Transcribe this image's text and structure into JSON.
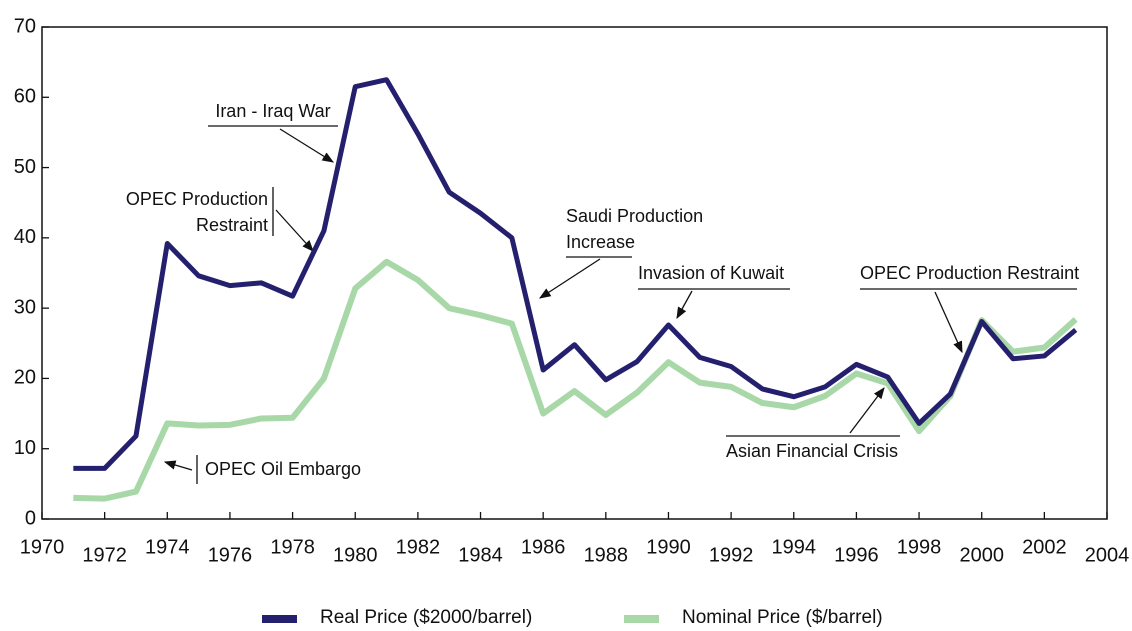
{
  "chart_data": {
    "type": "line",
    "x": [
      1971,
      1972,
      1973,
      1974,
      1975,
      1976,
      1977,
      1978,
      1979,
      1980,
      1981,
      1982,
      1983,
      1984,
      1985,
      1986,
      1987,
      1988,
      1989,
      1990,
      1991,
      1992,
      1993,
      1994,
      1995,
      1996,
      1997,
      1998,
      1999,
      2000,
      2001,
      2002,
      2003
    ],
    "series": [
      {
        "name": "Real Price ($2000/barrel)",
        "color": "#25206e",
        "values": [
          7.2,
          7.2,
          11.8,
          39.2,
          34.6,
          33.2,
          33.6,
          31.7,
          41.0,
          61.5,
          62.5,
          54.8,
          46.5,
          43.5,
          40.0,
          21.2,
          24.8,
          19.8,
          22.4,
          27.6,
          23.0,
          21.7,
          18.5,
          17.4,
          18.8,
          22.0,
          20.2,
          13.6,
          17.8,
          28.1,
          22.8,
          23.2,
          26.9
        ]
      },
      {
        "name": "Nominal Price ($/barrel)",
        "color": "#a8d8a8",
        "values": [
          3.0,
          2.9,
          3.9,
          13.6,
          13.3,
          13.4,
          14.3,
          14.4,
          20.0,
          32.8,
          36.6,
          34.0,
          30.0,
          29.0,
          27.8,
          15.0,
          18.2,
          14.8,
          18.0,
          22.3,
          19.4,
          18.8,
          16.5,
          15.9,
          17.5,
          20.7,
          19.3,
          12.5,
          17.5,
          28.3,
          23.8,
          24.4,
          28.4
        ]
      }
    ],
    "xlim": [
      1970,
      2004
    ],
    "xticks": [
      1970,
      1972,
      1974,
      1976,
      1978,
      1980,
      1982,
      1984,
      1986,
      1988,
      1990,
      1992,
      1994,
      1996,
      1998,
      2000,
      2002,
      2004
    ],
    "ylim": [
      0,
      70
    ],
    "yticks": [
      0,
      10,
      20,
      30,
      40,
      50,
      60,
      70
    ],
    "annotations": [
      {
        "lines": [
          "Iran - Iraq War"
        ]
      },
      {
        "lines": [
          "OPEC Production",
          "Restraint"
        ]
      },
      {
        "lines": [
          "Saudi Production",
          "Increase"
        ]
      },
      {
        "lines": [
          "Invasion of Kuwait"
        ]
      },
      {
        "lines": [
          "OPEC Production Restraint"
        ]
      },
      {
        "lines": [
          "OPEC Oil Embargo"
        ]
      },
      {
        "lines": [
          "Asian Financial Crisis"
        ]
      }
    ]
  }
}
